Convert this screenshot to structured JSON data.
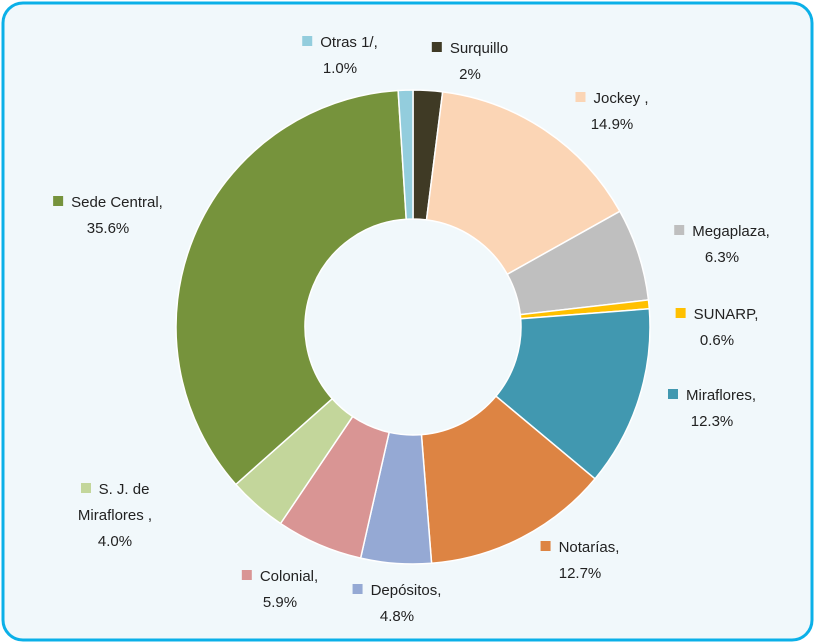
{
  "chart_data": {
    "type": "donut",
    "categories": [
      "Surquillo",
      "Jockey ,",
      "Megaplaza,",
      "SUNARP,",
      "Miraflores,",
      "Notarías,",
      "Depósitos,",
      "Colonial,",
      "S. J. de Miraflores ,",
      "Sede Central,",
      "Otras 1/,"
    ],
    "values": [
      2,
      14.9,
      6.3,
      0.6,
      12.3,
      12.7,
      4.8,
      5.9,
      4.0,
      35.6,
      1.0
    ],
    "value_labels": [
      "2%",
      "14.9%",
      "6.3%",
      "0.6%",
      "12.3%",
      "12.7%",
      "4.8%",
      "5.9%",
      "4.0%",
      "35.6%",
      "1.0%"
    ],
    "colors": [
      "#3f3a25",
      "#fbd5b5",
      "#bfbfbf",
      "#ffc000",
      "#4198b0",
      "#dd8443",
      "#95a9d4",
      "#d99594",
      "#c3d69b",
      "#76933c",
      "#93cddd"
    ]
  }
}
